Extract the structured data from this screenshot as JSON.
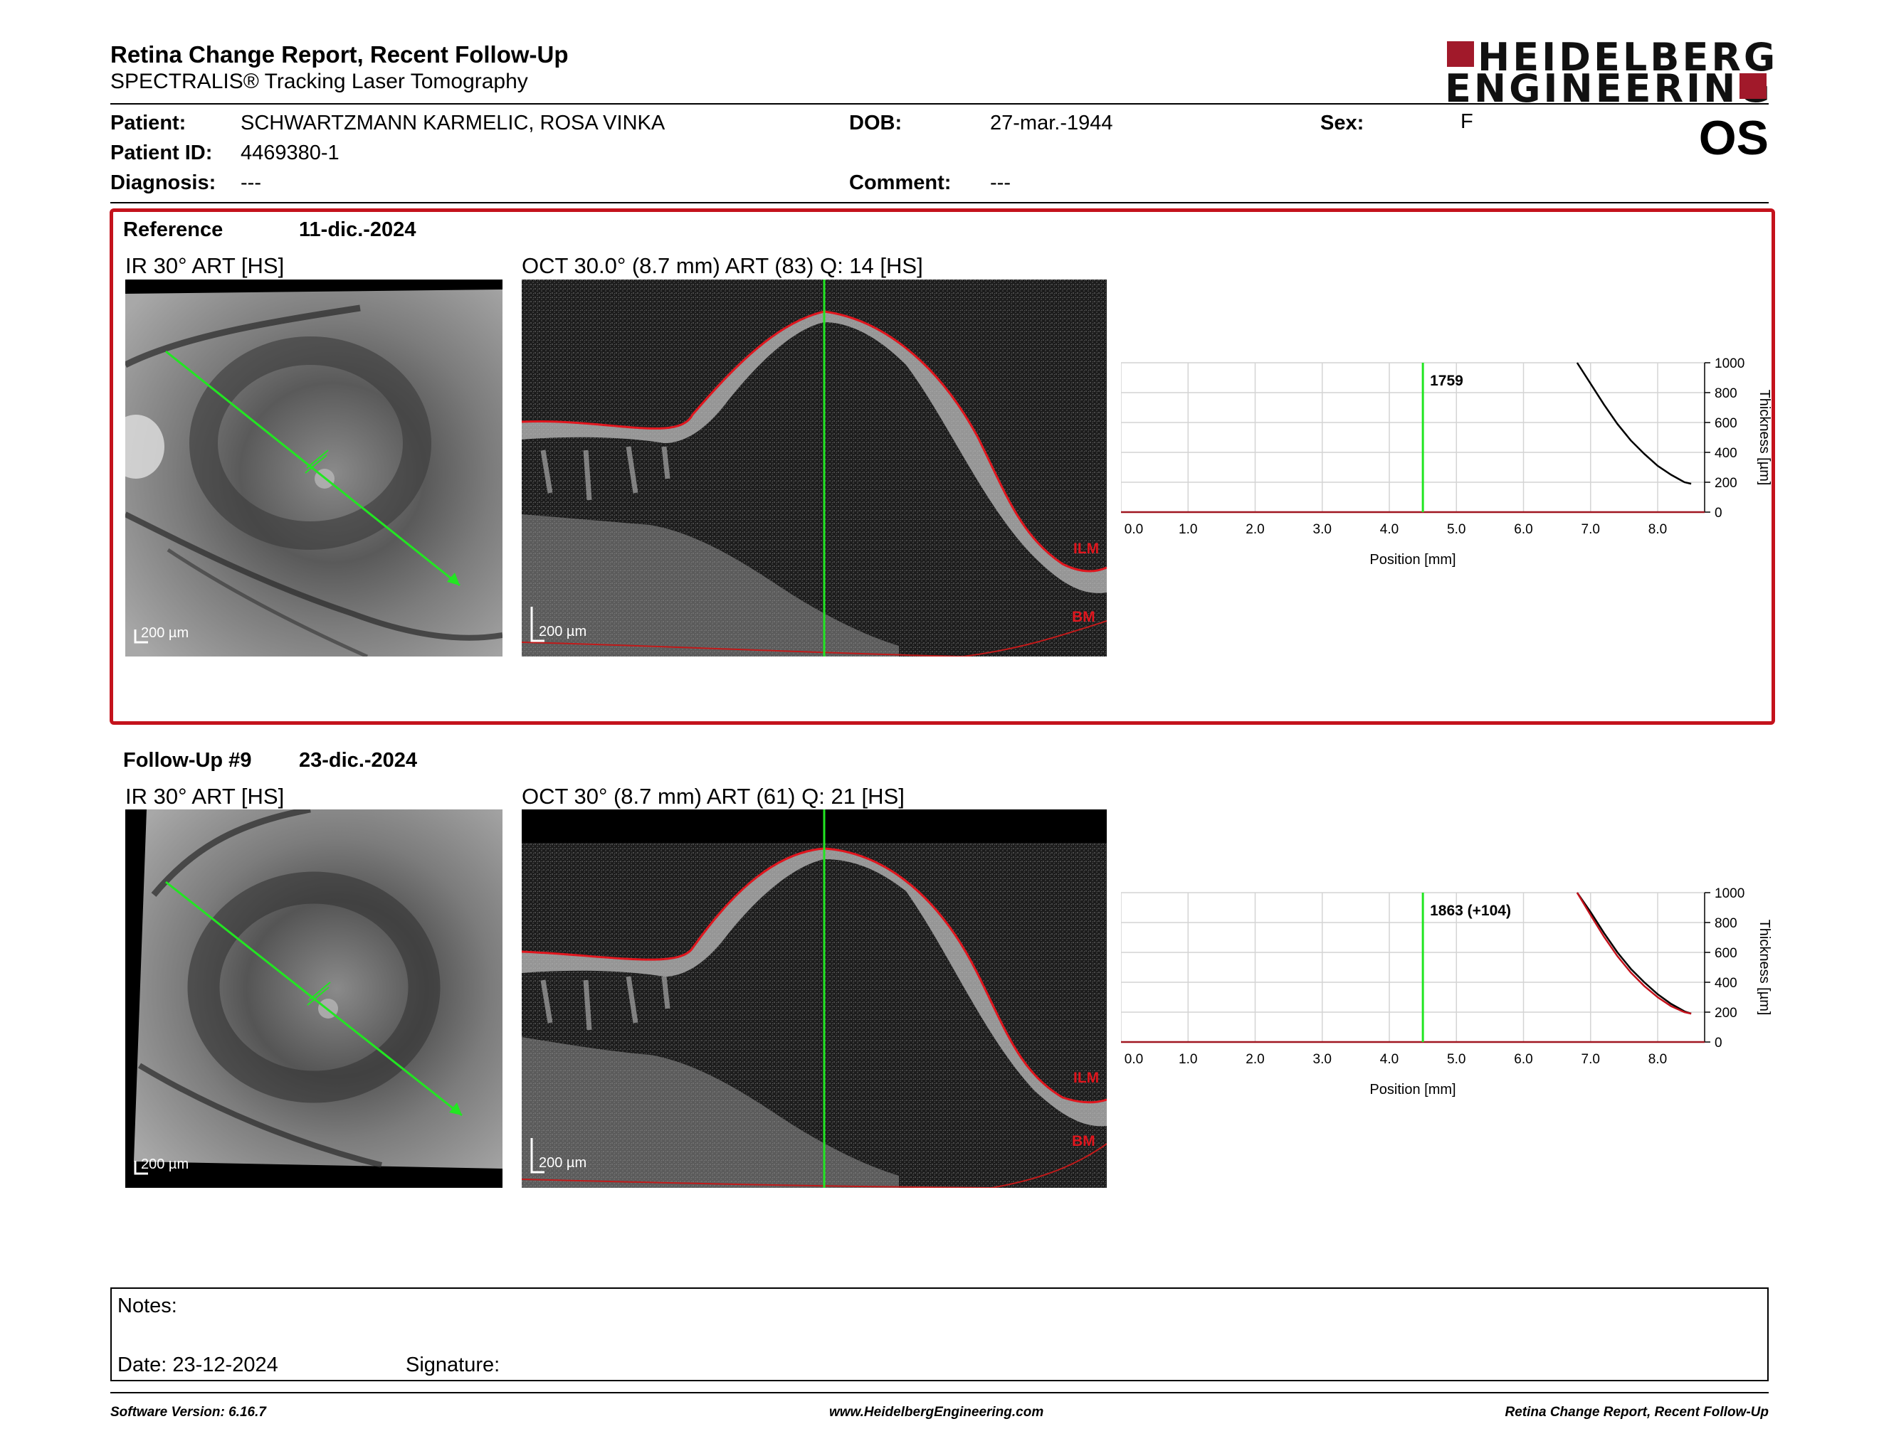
{
  "header": {
    "title": "Retina Change Report, Recent Follow-Up",
    "subtitle": "SPECTRALIS® Tracking Laser Tomography",
    "logo_line1": "HEIDELBERG",
    "logo_line2": "ENGINEERING",
    "eye": "OS"
  },
  "patient": {
    "patient_label": "Patient:",
    "patient_value": "SCHWARTZMANN KARMELIC, ROSA VINKA",
    "dob_label": "DOB:",
    "dob_value": "27-mar.-1944",
    "sex_label": "Sex:",
    "sex_value": "F",
    "id_label": "Patient ID:",
    "id_value": "4469380-1",
    "diagnosis_label": "Diagnosis:",
    "diagnosis_value": "---",
    "comment_label": "Comment:",
    "comment_value": "---"
  },
  "reference": {
    "label": "Reference",
    "date": "11-dic.-2024",
    "ir_title": "IR 30° ART [HS]",
    "oct_title": "OCT 30.0° (8.7 mm) ART (83) Q: 14 [HS]",
    "scale_label": "200 µm",
    "ilm": "ILM",
    "bm": "BM"
  },
  "followup": {
    "label": "Follow-Up #9",
    "date": "23-dic.-2024",
    "ir_title": "IR 30° ART [HS]",
    "oct_title": "OCT 30° (8.7 mm) ART (61) Q: 21 [HS]",
    "scale_label": "200 µm",
    "ilm": "ILM",
    "bm": "BM"
  },
  "chart_data": [
    {
      "type": "line",
      "xlabel": "Position [mm]",
      "ylabel": "Thickness [µm]",
      "xlim": [
        0,
        8.7
      ],
      "ylim": [
        0,
        1000
      ],
      "xticks": [
        "0.0",
        "1.0",
        "2.0",
        "3.0",
        "4.0",
        "5.0",
        "6.0",
        "7.0",
        "8.0"
      ],
      "yticks": [
        "0",
        "200",
        "400",
        "600",
        "800",
        "1000"
      ],
      "cursor_x": 4.5,
      "cursor_label": "1759",
      "grid": true,
      "series": [
        {
          "color": "#000000",
          "x": [
            6.8,
            7.0,
            7.2,
            7.4,
            7.6,
            7.8,
            8.0,
            8.2,
            8.4,
            8.5
          ],
          "y": [
            1000,
            860,
            720,
            590,
            480,
            390,
            310,
            250,
            200,
            190
          ]
        }
      ]
    },
    {
      "type": "line",
      "xlabel": "Position [mm]",
      "ylabel": "Thickness [µm]",
      "xlim": [
        0,
        8.7
      ],
      "ylim": [
        0,
        1000
      ],
      "xticks": [
        "0.0",
        "1.0",
        "2.0",
        "3.0",
        "4.0",
        "5.0",
        "6.0",
        "7.0",
        "8.0"
      ],
      "yticks": [
        "0",
        "200",
        "400",
        "600",
        "800",
        "1000"
      ],
      "cursor_x": 4.5,
      "cursor_label": "1863 (+104)",
      "grid": true,
      "series": [
        {
          "color": "#000000",
          "x": [
            6.8,
            7.0,
            7.2,
            7.4,
            7.6,
            7.8,
            8.0,
            8.2,
            8.4,
            8.5
          ],
          "y": [
            1000,
            870,
            730,
            600,
            490,
            400,
            320,
            255,
            205,
            190
          ]
        },
        {
          "color": "#c4121c",
          "x": [
            6.8,
            7.0,
            7.2,
            7.4,
            7.6,
            7.8,
            8.0,
            8.2,
            8.4,
            8.5
          ],
          "y": [
            1000,
            850,
            705,
            575,
            465,
            375,
            300,
            240,
            200,
            190
          ]
        }
      ]
    }
  ],
  "notes": {
    "notes_label": "Notes:",
    "date_label": "Date: 23-12-2024",
    "signature_label": "Signature:"
  },
  "footer": {
    "version": "Software Version: 6.16.7",
    "website": "www.HeidelbergEngineering.com",
    "report_name": "Retina Change Report, Recent Follow-Up"
  },
  "colors": {
    "accent": "#c4121c",
    "logo": "#a1192a",
    "scan_line": "#22e622"
  }
}
